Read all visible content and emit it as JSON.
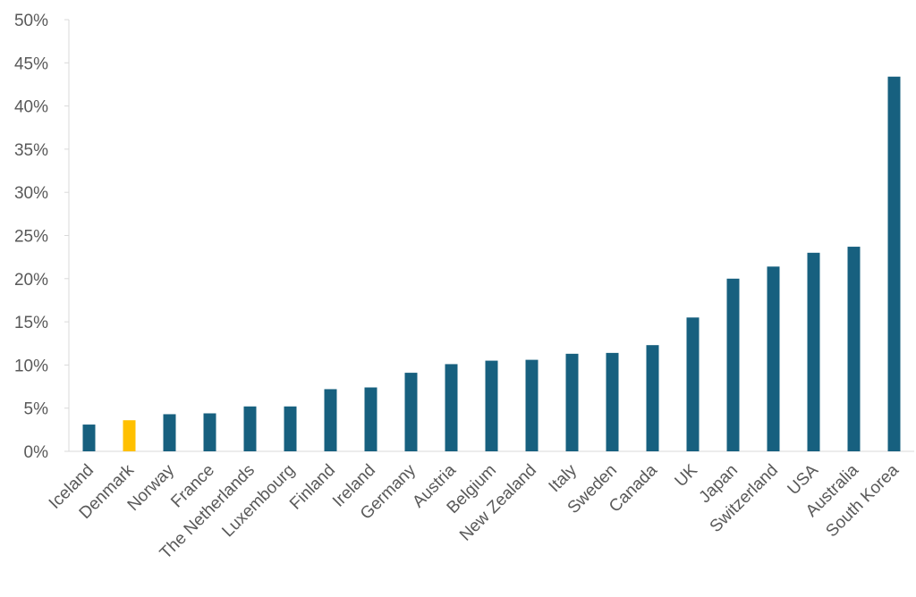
{
  "chart_data": {
    "type": "bar",
    "title": "",
    "xlabel": "",
    "ylabel": "",
    "ylim": [
      0,
      50
    ],
    "y_tick_format": "percent",
    "y_ticks": [
      "0%",
      "5%",
      "10%",
      "15%",
      "20%",
      "25%",
      "30%",
      "35%",
      "40%",
      "45%",
      "50%"
    ],
    "grid": false,
    "legend": "none",
    "categories": [
      "Iceland",
      "Denmark",
      "Norway",
      "France",
      "The Netherlands",
      "Luxembourg",
      "Finland",
      "Ireland",
      "Germany",
      "Austria",
      "Belgium",
      "New Zealand",
      "Italy",
      "Sweden",
      "Canada",
      "UK",
      "Japan",
      "Switzerland",
      "USA",
      "Australia",
      "South Korea"
    ],
    "values": [
      3.1,
      3.6,
      4.3,
      4.4,
      5.2,
      5.2,
      7.2,
      7.4,
      9.1,
      10.1,
      10.5,
      10.6,
      11.3,
      11.4,
      12.3,
      15.5,
      20.0,
      21.4,
      23.0,
      23.7,
      43.4
    ],
    "highlight_category": "Denmark",
    "colors": {
      "bar": "#17607F",
      "highlight": "#FFC000",
      "axis": "#D9D9D9",
      "text": "#595959"
    }
  }
}
